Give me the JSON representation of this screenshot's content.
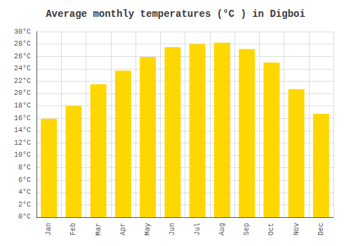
{
  "chart_data": {
    "type": "bar",
    "title": "Average monthly temperatures (°C ) in Digboi",
    "categories": [
      "Jan",
      "Feb",
      "Mar",
      "Apr",
      "May",
      "Jun",
      "Jul",
      "Aug",
      "Sep",
      "Oct",
      "Nov",
      "Dec"
    ],
    "values": [
      15.9,
      18.0,
      21.5,
      23.7,
      25.9,
      27.5,
      28.0,
      28.2,
      27.2,
      25.0,
      20.7,
      16.7
    ],
    "color": "#FFD700",
    "ylim": [
      0,
      30
    ],
    "yticks": [
      {
        "value": 0,
        "label": "0°C"
      },
      {
        "value": 2,
        "label": "2°C"
      },
      {
        "value": 4,
        "label": "4°C"
      },
      {
        "value": 6,
        "label": "6°C"
      },
      {
        "value": 8,
        "label": "8°C"
      },
      {
        "value": 10,
        "label": "10°C"
      },
      {
        "value": 12,
        "label": "12°C"
      },
      {
        "value": 14,
        "label": "14°C"
      },
      {
        "value": 16,
        "label": "16°C"
      },
      {
        "value": 18,
        "label": "18°C"
      },
      {
        "value": 20,
        "label": "20°C"
      },
      {
        "value": 22,
        "label": "22°C"
      },
      {
        "value": 24,
        "label": "24°C"
      },
      {
        "value": 26,
        "label": "26°C"
      },
      {
        "value": 28,
        "label": "28°C"
      },
      {
        "value": 30,
        "label": "30°C"
      }
    ],
    "grid": true
  }
}
